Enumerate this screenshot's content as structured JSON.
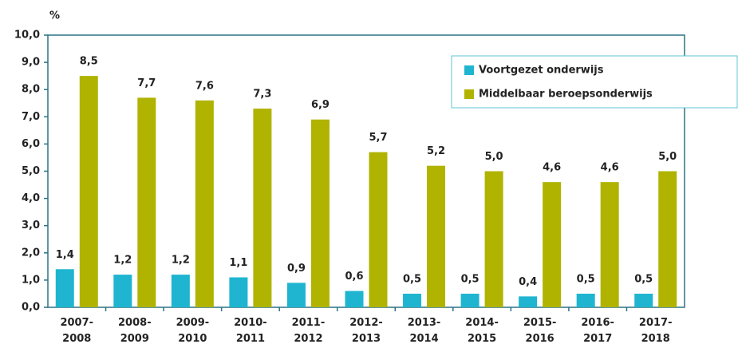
{
  "chart_data": {
    "type": "bar",
    "y_axis_label": "%",
    "categories": [
      "2007-\n2008",
      "2008-\n2009",
      "2009-\n2010",
      "2010-\n2011",
      "2011-\n2012",
      "2012-\n2013",
      "2013-\n2014",
      "2014-\n2015",
      "2015-\n2016",
      "2016-\n2017",
      "2017-\n2018"
    ],
    "series": [
      {
        "name": "Voortgezet onderwijs",
        "color": "#1fb5d0",
        "values": [
          1.4,
          1.2,
          1.2,
          1.1,
          0.9,
          0.6,
          0.5,
          0.5,
          0.4,
          0.5,
          0.5
        ],
        "value_labels": [
          "1,4",
          "1,2",
          "1,2",
          "1,1",
          "0,9",
          "0,6",
          "0,5",
          "0,5",
          "0,4",
          "0,5",
          "0,5"
        ]
      },
      {
        "name": "Middelbaar beroepsonderwijs",
        "color": "#b0b300",
        "values": [
          8.5,
          7.7,
          7.6,
          7.3,
          6.9,
          5.7,
          5.2,
          5.0,
          4.6,
          4.6,
          5.0
        ],
        "value_labels": [
          "8,5",
          "7,7",
          "7,6",
          "7,3",
          "6,9",
          "5,7",
          "5,2",
          "5,0",
          "4,6",
          "4,6",
          "5,0"
        ]
      }
    ],
    "ylim": [
      0,
      10
    ],
    "yticks": [
      {
        "value": 0,
        "label": "0,0"
      },
      {
        "value": 1,
        "label": "1,0"
      },
      {
        "value": 2,
        "label": "2,0"
      },
      {
        "value": 3,
        "label": "3,0"
      },
      {
        "value": 4,
        "label": "4,0"
      },
      {
        "value": 5,
        "label": "5,0"
      },
      {
        "value": 6,
        "label": "6,0"
      },
      {
        "value": 7,
        "label": "7,0"
      },
      {
        "value": 8,
        "label": "8,0"
      },
      {
        "value": 9,
        "label": "9,0"
      },
      {
        "value": 10,
        "label": "10,0"
      }
    ],
    "grid": false,
    "legend": "top-right"
  }
}
